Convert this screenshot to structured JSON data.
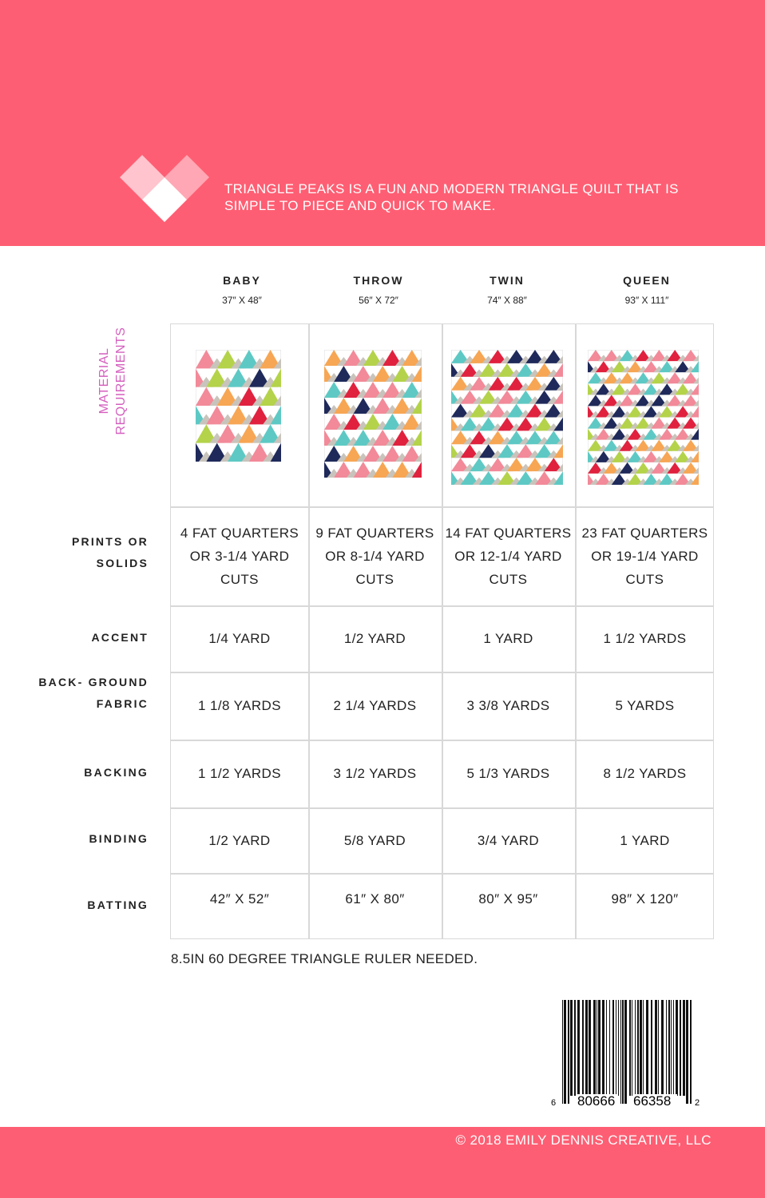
{
  "tagline": "TRIANGLE PEAKS IS A FUN AND MODERN TRIANGLE QUILT THAT IS SIMPLE TO PIECE AND QUICK TO MAKE.",
  "section_label": "MATERIAL REQUIREMENTS",
  "sizes": [
    {
      "name": "BABY",
      "dims": "37″ X 48″"
    },
    {
      "name": "THROW",
      "dims": "56″ X 72″"
    },
    {
      "name": "TWIN",
      "dims": "74″ X 88″"
    },
    {
      "name": "QUEEN",
      "dims": "93″ X 111″"
    }
  ],
  "rows": [
    {
      "label": "PRINTS OR SOLIDS",
      "values": [
        "4 FAT QUARTERS OR 3-1/4 YARD CUTS",
        "9 FAT QUARTERS OR 8-1/4 YARD CUTS",
        "14 FAT QUARTERS OR 12-1/4 YARD CUTS",
        "23 FAT QUARTERS OR 19-1/4 YARD CUTS"
      ]
    },
    {
      "label": "ACCENT",
      "values": [
        "1/4 YARD",
        "1/2 YARD",
        "1 YARD",
        "1 1/2 YARDS"
      ]
    },
    {
      "label": "BACK- GROUND FABRIC",
      "values": [
        "1 1/8 YARDS",
        "2 1/4 YARDS",
        "3 3/8 YARDS",
        "5 YARDS"
      ]
    },
    {
      "label": "BACKING",
      "values": [
        "1 1/2 YARDS",
        "3 1/2 YARDS",
        "5 1/3 YARDS",
        "8 1/2 YARDS"
      ]
    },
    {
      "label": "BINDING",
      "values": [
        "1/2 YARD",
        "5/8 YARD",
        "3/4 YARD",
        "1 YARD"
      ]
    },
    {
      "label": "BATTING",
      "values": [
        "42″ X 52″",
        "61″ X 80″",
        "80″ X 95″",
        "98″ X 120″"
      ]
    }
  ],
  "note": "8.5IN 60 DEGREE TRIANGLE RULER NEEDED.",
  "barcode": {
    "left": "6",
    "mid1": "80666",
    "mid2": "66358",
    "right": "2"
  },
  "copyright": "© 2018 EMILY DENNIS CREATIVE, LLC",
  "colors": {
    "brand": "#fe5e73",
    "accent_text": "#d45fbe",
    "quilt": [
      "#5ec9c4",
      "#f7a654",
      "#f28a99",
      "#b4d34a",
      "#e0223f",
      "#1f2a5a"
    ],
    "quilt_gray": "#c8c4bc"
  }
}
